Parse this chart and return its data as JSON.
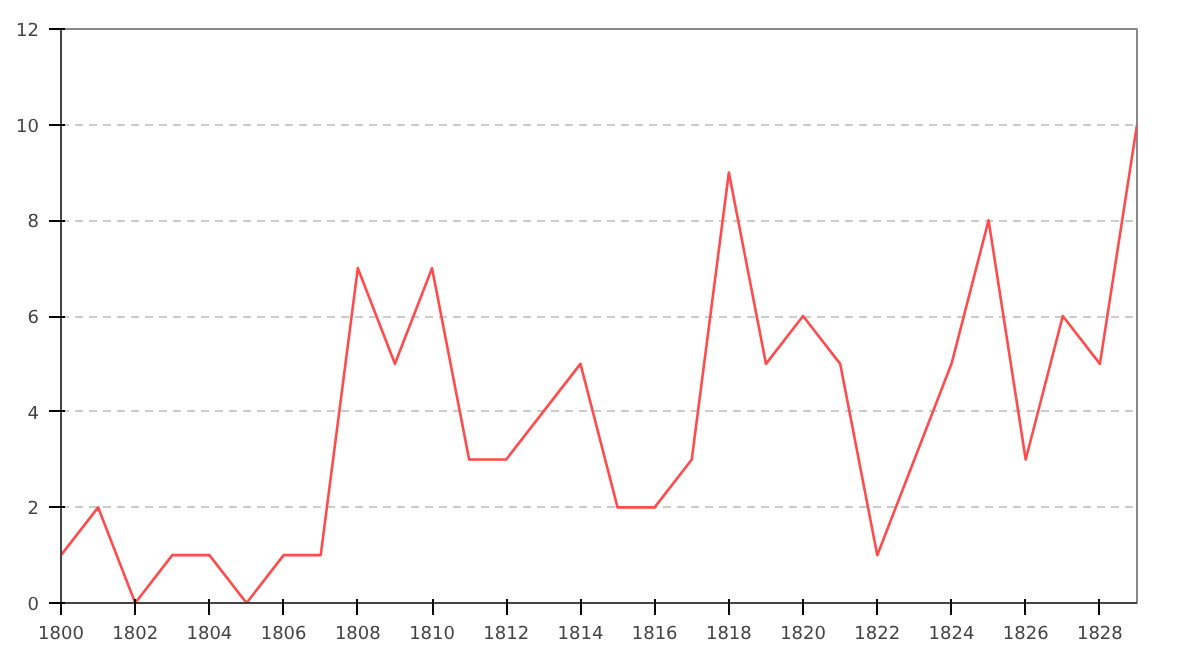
{
  "chart_data": {
    "type": "line",
    "x": [
      1800,
      1801,
      1802,
      1803,
      1804,
      1805,
      1806,
      1807,
      1808,
      1809,
      1810,
      1811,
      1812,
      1813,
      1814,
      1815,
      1816,
      1817,
      1818,
      1819,
      1820,
      1821,
      1822,
      1823,
      1824,
      1825,
      1826,
      1827,
      1828,
      1829
    ],
    "series": [
      {
        "color": "#ff4b4b",
        "values": [
          1,
          2,
          0,
          1,
          1,
          0,
          1,
          1,
          7,
          5,
          7,
          3,
          3,
          4,
          5,
          2,
          2,
          3,
          9,
          5,
          6,
          5,
          1,
          3,
          5,
          8,
          3,
          6,
          5,
          10
        ]
      }
    ],
    "xlim": [
      1800,
      1829
    ],
    "xticks": [
      1800,
      1802,
      1804,
      1806,
      1808,
      1810,
      1812,
      1814,
      1816,
      1818,
      1820,
      1822,
      1824,
      1826,
      1828
    ],
    "ylim": [
      0,
      12
    ],
    "yticks": [
      0,
      2,
      4,
      6,
      8,
      10,
      12
    ],
    "grid": "y",
    "marker": "none",
    "line_style": "solid"
  }
}
